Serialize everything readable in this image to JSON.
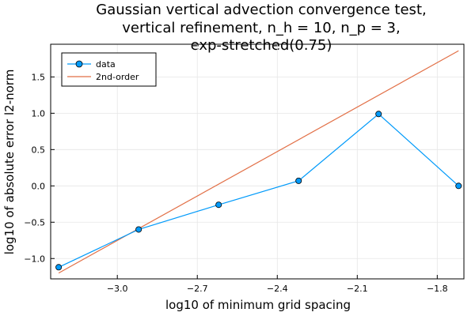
{
  "chart_data": {
    "type": "line",
    "title_lines": [
      "Gaussian vertical advection convergence test,",
      "vertical refinement, n_h = 10, n_p = 3,",
      "exp-stretched(0.75)"
    ],
    "xlabel": "log10 of minimum grid spacing",
    "ylabel": "log10 of absolute error l2-norm",
    "xlim": [
      -3.25,
      -1.7
    ],
    "ylim": [
      -1.28,
      1.95
    ],
    "xticks": [
      -3.0,
      -2.7,
      -2.4,
      -2.1,
      -1.8
    ],
    "xtick_labels": [
      "−3.0",
      "−2.7",
      "−2.4",
      "−2.1",
      "−1.8"
    ],
    "yticks": [
      -1.0,
      -0.5,
      0.0,
      0.5,
      1.0,
      1.5
    ],
    "ytick_labels": [
      "−1.0",
      "−0.5",
      "0.0",
      "0.5",
      "1.0",
      "1.5"
    ],
    "grid": true,
    "legend_position": "top-left",
    "series": [
      {
        "name": "data",
        "kind": "line+markers",
        "color": "#009AFA",
        "x": [
          -3.22,
          -2.92,
          -2.62,
          -2.32,
          -2.02,
          -1.72
        ],
        "y": [
          -1.12,
          -0.6,
          -0.26,
          0.07,
          0.99,
          0.0
        ]
      },
      {
        "name": "2nd-order",
        "kind": "line",
        "color": "#E26F46",
        "x": [
          -3.22,
          -1.72
        ],
        "y": [
          -1.2,
          1.86
        ]
      }
    ]
  }
}
